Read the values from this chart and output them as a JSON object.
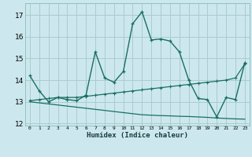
{
  "title": "",
  "xlabel": "Humidex (Indice chaleur)",
  "bg_color": "#cce8ee",
  "grid_color": "#aacccc",
  "line_color": "#1a6e65",
  "xlim": [
    -0.5,
    23.5
  ],
  "ylim": [
    11.9,
    17.55
  ],
  "yticks": [
    12,
    13,
    14,
    15,
    16,
    17
  ],
  "xticks": [
    0,
    1,
    2,
    3,
    4,
    5,
    6,
    7,
    8,
    9,
    10,
    11,
    12,
    13,
    14,
    15,
    16,
    17,
    18,
    19,
    20,
    21,
    22,
    23
  ],
  "line1_x": [
    0,
    1,
    2,
    3,
    4,
    5,
    6,
    7,
    8,
    9,
    10,
    11,
    12,
    13,
    14,
    15,
    16,
    17,
    18,
    19,
    20,
    21,
    22,
    23
  ],
  "line1_y": [
    14.2,
    13.5,
    13.0,
    13.2,
    13.1,
    13.05,
    13.3,
    15.3,
    14.1,
    13.9,
    14.4,
    16.6,
    17.15,
    15.85,
    15.9,
    15.8,
    15.3,
    14.0,
    13.15,
    13.1,
    12.3,
    13.2,
    13.1,
    14.8
  ],
  "line2_x": [
    0,
    1,
    2,
    3,
    4,
    5,
    6,
    7,
    8,
    9,
    10,
    11,
    12,
    13,
    14,
    15,
    16,
    17,
    18,
    19,
    20,
    21,
    22,
    23
  ],
  "line2_y": [
    13.05,
    13.1,
    13.15,
    13.2,
    13.2,
    13.2,
    13.25,
    13.3,
    13.35,
    13.4,
    13.45,
    13.5,
    13.55,
    13.6,
    13.65,
    13.7,
    13.75,
    13.8,
    13.85,
    13.9,
    13.95,
    14.0,
    14.1,
    14.75
  ],
  "line3_x": [
    0,
    1,
    2,
    3,
    4,
    5,
    6,
    7,
    8,
    9,
    10,
    11,
    12,
    13,
    14,
    15,
    16,
    17,
    18,
    19,
    20,
    21,
    22,
    23
  ],
  "line3_y": [
    13.0,
    12.95,
    12.9,
    12.85,
    12.8,
    12.75,
    12.7,
    12.65,
    12.6,
    12.55,
    12.5,
    12.45,
    12.4,
    12.38,
    12.36,
    12.35,
    12.33,
    12.32,
    12.3,
    12.28,
    12.25,
    12.23,
    12.21,
    12.2
  ]
}
